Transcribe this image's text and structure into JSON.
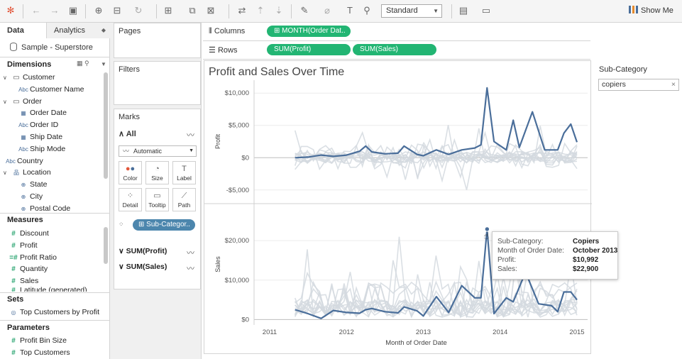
{
  "toolbar": {
    "view_mode": "Standard",
    "show_me": "Show Me"
  },
  "left_panel": {
    "tab_data": "Data",
    "tab_analytics": "Analytics",
    "datasource": "Sample - Superstore",
    "dimensions_label": "Dimensions",
    "dimensions": [
      {
        "label": "Customer",
        "type": "folder"
      },
      {
        "label": "Customer Name",
        "type": "abc"
      },
      {
        "label": "Order",
        "type": "folder"
      },
      {
        "label": "Order Date",
        "type": "date"
      },
      {
        "label": "Order ID",
        "type": "abc"
      },
      {
        "label": "Ship Date",
        "type": "date"
      },
      {
        "label": "Ship Mode",
        "type": "abc"
      },
      {
        "label": "Country",
        "type": "abc"
      },
      {
        "label": "Location",
        "type": "hierarchy"
      },
      {
        "label": "State",
        "type": "geo"
      },
      {
        "label": "City",
        "type": "geo"
      },
      {
        "label": "Postal Code",
        "type": "geo"
      }
    ],
    "measures_label": "Measures",
    "measures": [
      "Discount",
      "Profit",
      "Profit Ratio",
      "Quantity",
      "Sales",
      "Latitude (generated)"
    ],
    "sets_label": "Sets",
    "sets": [
      "Top Customers by Profit"
    ],
    "parameters_label": "Parameters",
    "parameters": [
      "Profit Bin Size",
      "Top Customers"
    ]
  },
  "cards": {
    "pages": "Pages",
    "filters": "Filters",
    "marks": "Marks",
    "marks_all": "All",
    "marks_type": "Automatic",
    "buttons": [
      "Color",
      "Size",
      "Label",
      "Detail",
      "Tooltip",
      "Path"
    ],
    "detail_pill": "Sub-Categor..",
    "measure_rows": [
      "SUM(Profit)",
      "SUM(Sales)"
    ]
  },
  "shelves": {
    "columns_label": "Columns",
    "columns_pill": "MONTH(Order Dat..",
    "rows_label": "Rows",
    "rows_pills": [
      "SUM(Profit)",
      "SUM(Sales)"
    ]
  },
  "view": {
    "title": "Profit and Sales Over Time"
  },
  "filter_card": {
    "title": "Sub-Category",
    "value": "copiers"
  },
  "tooltip": {
    "rows": [
      {
        "key": "Sub-Category:",
        "value": "Copiers"
      },
      {
        "key": "Month of Order Date:",
        "value": "October 2013"
      },
      {
        "key": "Profit:",
        "value": "$10,992"
      },
      {
        "key": "Sales:",
        "value": "$22,900"
      }
    ]
  },
  "colors": {
    "highlight": "#4a6e9a",
    "background_lines": "#d3d9df",
    "green_pill": "#22b573",
    "blue_pill": "#4c86ad"
  },
  "chart_data": [
    {
      "type": "line",
      "xlabel": "",
      "ylabel": "Profit",
      "x_ticks": [
        "2011",
        "2012",
        "2013",
        "2014",
        "2015"
      ],
      "ylim": [
        -7000,
        12000
      ],
      "y_ticks": [
        {
          "value": 10000,
          "label": "$10,000"
        },
        {
          "value": 5000,
          "label": "$5,000"
        },
        {
          "value": 0,
          "label": "$0"
        },
        {
          "value": -5000,
          "label": "-$5,000"
        }
      ],
      "series": [
        {
          "values": [
            [
              2011.33,
              0
            ],
            [
              2011.5,
              100
            ],
            [
              2011.67,
              400
            ],
            [
              2011.83,
              200
            ],
            [
              2012.0,
              400
            ],
            [
              2012.17,
              1000
            ],
            [
              2012.25,
              1800
            ],
            [
              2012.33,
              900
            ],
            [
              2012.5,
              600
            ],
            [
              2012.67,
              700
            ],
            [
              2012.75,
              1800
            ],
            [
              2012.92,
              500
            ],
            [
              2013.0,
              300
            ],
            [
              2013.17,
              1200
            ],
            [
              2013.33,
              500
            ],
            [
              2013.5,
              1200
            ],
            [
              2013.67,
              1500
            ],
            [
              2013.75,
              2000
            ],
            [
              2013.83,
              10800
            ],
            [
              2013.92,
              2500
            ],
            [
              2014.08,
              1200
            ],
            [
              2014.17,
              5800
            ],
            [
              2014.25,
              1600
            ],
            [
              2014.42,
              7100
            ],
            [
              2014.58,
              1200
            ],
            [
              2014.75,
              1200
            ],
            [
              2014.83,
              3800
            ],
            [
              2014.92,
              5200
            ],
            [
              2015.0,
              2400
            ]
          ]
        }
      ]
    },
    {
      "type": "line",
      "xlabel": "Month of Order Date",
      "ylabel": "Sales",
      "x_ticks": [
        "2011",
        "2012",
        "2013",
        "2014",
        "2015"
      ],
      "ylim": [
        -1000,
        29000
      ],
      "y_ticks": [
        {
          "value": 20000,
          "label": "$20,000"
        },
        {
          "value": 10000,
          "label": "$10,000"
        },
        {
          "value": 0,
          "label": "$0"
        }
      ],
      "series": [
        {
          "values": [
            [
              2011.33,
              2500
            ],
            [
              2011.5,
              1500
            ],
            [
              2011.67,
              300
            ],
            [
              2011.83,
              2300
            ],
            [
              2012.0,
              1800
            ],
            [
              2012.17,
              1600
            ],
            [
              2012.25,
              2500
            ],
            [
              2012.33,
              2800
            ],
            [
              2012.5,
              2000
            ],
            [
              2012.67,
              1700
            ],
            [
              2012.75,
              3200
            ],
            [
              2012.92,
              2200
            ],
            [
              2013.0,
              900
            ],
            [
              2013.17,
              5800
            ],
            [
              2013.33,
              1800
            ],
            [
              2013.5,
              8600
            ],
            [
              2013.67,
              5500
            ],
            [
              2013.75,
              5500
            ],
            [
              2013.83,
              22900
            ],
            [
              2013.92,
              1500
            ],
            [
              2014.08,
              5500
            ],
            [
              2014.17,
              4500
            ],
            [
              2014.33,
              12000
            ],
            [
              2014.5,
              4000
            ],
            [
              2014.67,
              3500
            ],
            [
              2014.75,
              2000
            ],
            [
              2014.83,
              7000
            ],
            [
              2014.92,
              7000
            ],
            [
              2015.0,
              5000
            ]
          ]
        }
      ]
    }
  ]
}
